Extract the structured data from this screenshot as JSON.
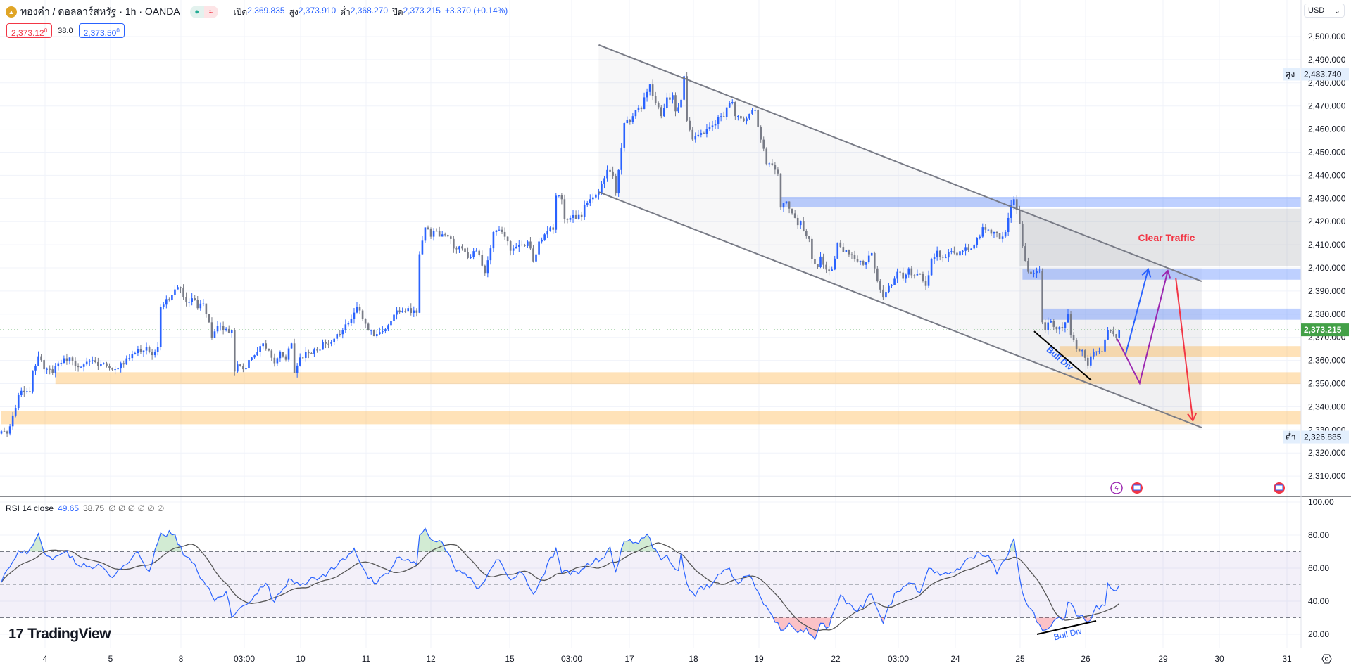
{
  "header": {
    "symbol": "ทองคำ / ดอลลาร์สหรัฐ · 1h · OANDA",
    "open_label": "เปิด",
    "open": "2,369.835",
    "high_label": "สูง",
    "high": "2,373.910",
    "low_label": "ต่ำ",
    "low": "2,368.270",
    "close_label": "ปิด",
    "close": "2,373.215",
    "change": "+3.370 (+0.14%)",
    "bid": "2,373.12",
    "bid_sup": "0",
    "spread": "38.0",
    "ask": "2,373.50",
    "ask_sup": "0",
    "currency": "USD"
  },
  "rsi_header": {
    "label": "RSI 14 close",
    "rsi": "49.65",
    "ma": "38.75",
    "extras": "∅ ∅ ∅ ∅ ∅ ∅"
  },
  "logo": "TradingView",
  "colors": {
    "up": "#2962ff",
    "down": "#787b86",
    "last_price": "#43a047",
    "rsi": "#2962ff",
    "rsi_ma": "#555555",
    "clear_traffic": "#f23645"
  },
  "chart_data": {
    "type": "candlestick",
    "price_axis": {
      "ticks": [
        "2,500.000",
        "2,490.000",
        "2,480.000",
        "2,470.000",
        "2,460.000",
        "2,450.000",
        "2,440.000",
        "2,430.000",
        "2,420.000",
        "2,410.000",
        "2,400.000",
        "2,390.000",
        "2,380.000",
        "2,370.000",
        "2,360.000",
        "2,350.000",
        "2,340.000",
        "2,330.000",
        "2,320.000",
        "2,310.000"
      ],
      "range": [
        2302,
        2511
      ]
    },
    "time_axis": {
      "ticks": [
        "4",
        "5",
        "8",
        "03:00",
        "10",
        "11",
        "12",
        "15",
        "03:00",
        "17",
        "18",
        "19",
        "22",
        "03:00",
        "24",
        "25",
        "26",
        "29",
        "30",
        "31"
      ]
    },
    "last_price": "2,373.215",
    "visible_high": {
      "label": "สูง",
      "value": "2,483.740"
    },
    "visible_low": {
      "label": "ต่ำ",
      "value": "2,326.885"
    },
    "close_path": [
      [
        0,
        2329.4
      ],
      [
        2,
        2328.4
      ],
      [
        5,
        2339.5
      ],
      [
        6,
        2345
      ],
      [
        10,
        2346.6
      ],
      [
        11,
        2355.7
      ],
      [
        13,
        2361.8
      ],
      [
        15,
        2356.2
      ],
      [
        18,
        2354.7
      ],
      [
        20,
        2358.8
      ],
      [
        24,
        2361.3
      ],
      [
        26,
        2357.7
      ],
      [
        29,
        2358.3
      ],
      [
        33,
        2359.3
      ],
      [
        37,
        2357.7
      ],
      [
        40,
        2356.2
      ],
      [
        43,
        2358.3
      ],
      [
        46,
        2362.8
      ],
      [
        51,
        2365.9
      ],
      [
        53,
        2362.3
      ],
      [
        55,
        2365.9
      ],
      [
        56,
        2383.1
      ],
      [
        59,
        2386.1
      ],
      [
        61,
        2390.7
      ],
      [
        63,
        2391.2
      ],
      [
        65,
        2385.1
      ],
      [
        68,
        2386.1
      ],
      [
        69,
        2382.6
      ],
      [
        71,
        2384.6
      ],
      [
        73,
        2376.5
      ],
      [
        74,
        2369.9
      ],
      [
        76,
        2375
      ],
      [
        78,
        2373
      ],
      [
        81,
        2373
      ],
      [
        82,
        2355.2
      ],
      [
        83,
        2358.3
      ],
      [
        85,
        2356.2
      ],
      [
        88,
        2361.3
      ],
      [
        90,
        2363.8
      ],
      [
        92,
        2367.4
      ],
      [
        94,
        2364.3
      ],
      [
        96,
        2358.8
      ],
      [
        98,
        2363.8
      ],
      [
        100,
        2360.3
      ],
      [
        102,
        2367.4
      ],
      [
        103,
        2354.7
      ],
      [
        105,
        2361.3
      ],
      [
        107,
        2363.8
      ],
      [
        111,
        2364.3
      ],
      [
        113,
        2367.9
      ],
      [
        116,
        2367.9
      ],
      [
        118,
        2371.4
      ],
      [
        120,
        2373
      ],
      [
        123,
        2378
      ],
      [
        125,
        2383.1
      ],
      [
        127,
        2378
      ],
      [
        129,
        2373
      ],
      [
        132,
        2371.4
      ],
      [
        135,
        2373.5
      ],
      [
        137,
        2377
      ],
      [
        139,
        2381.6
      ],
      [
        142,
        2381.1
      ],
      [
        145,
        2381.6
      ],
      [
        146,
        2380.6
      ],
      [
        147,
        2405.9
      ],
      [
        149,
        2417.5
      ],
      [
        151,
        2413.5
      ],
      [
        152,
        2416
      ],
      [
        155,
        2414.5
      ],
      [
        158,
        2412.5
      ],
      [
        159,
        2408.4
      ],
      [
        162,
        2408.4
      ],
      [
        164,
        2404.3
      ],
      [
        167,
        2407.4
      ],
      [
        170,
        2397.8
      ],
      [
        171,
        2403.3
      ],
      [
        173,
        2415.5
      ],
      [
        175,
        2416.5
      ],
      [
        177,
        2413.5
      ],
      [
        179,
        2407.4
      ],
      [
        180,
        2408.4
      ],
      [
        183,
        2410
      ],
      [
        185,
        2411.4
      ],
      [
        187,
        2402.8
      ],
      [
        189,
        2411.4
      ],
      [
        191,
        2414.5
      ],
      [
        193,
        2417.5
      ],
      [
        194,
        2416.5
      ],
      [
        195,
        2431.2
      ],
      [
        197,
        2429.7
      ],
      [
        198,
        2421.1
      ],
      [
        200,
        2421.6
      ],
      [
        204,
        2422.1
      ],
      [
        205,
        2427.1
      ],
      [
        207,
        2429.7
      ],
      [
        209,
        2431.7
      ],
      [
        211,
        2436.3
      ],
      [
        213,
        2442.3
      ],
      [
        215,
        2439.8
      ],
      [
        216,
        2432.2
      ],
      [
        217,
        2442.3
      ],
      [
        218,
        2452
      ],
      [
        219,
        2462.6
      ],
      [
        221,
        2463.1
      ],
      [
        222,
        2465.6
      ],
      [
        223,
        2468.2
      ],
      [
        225,
        2468.7
      ],
      [
        228,
        2479.3
      ],
      [
        229,
        2474.3
      ],
      [
        230,
        2471.2
      ],
      [
        232,
        2465.6
      ],
      [
        234,
        2473.7
      ],
      [
        236,
        2474.7
      ],
      [
        237,
        2467.7
      ],
      [
        239,
        2472.7
      ],
      [
        240,
        2482.9
      ],
      [
        241,
        2463.6
      ],
      [
        243,
        2455.5
      ],
      [
        245,
        2457.5
      ],
      [
        247,
        2458
      ],
      [
        249,
        2461.1
      ],
      [
        251,
        2462.1
      ],
      [
        252,
        2465.1
      ],
      [
        254,
        2465.1
      ],
      [
        256,
        2471.2
      ],
      [
        257,
        2471.7
      ],
      [
        258,
        2465.6
      ],
      [
        260,
        2464.6
      ],
      [
        262,
        2464.6
      ],
      [
        264,
        2468.2
      ],
      [
        265,
        2468.2
      ],
      [
        266,
        2461.1
      ],
      [
        268,
        2451.5
      ],
      [
        269,
        2444.9
      ],
      [
        271,
        2444.4
      ],
      [
        273,
        2440.8
      ],
      [
        274,
        2426.1
      ],
      [
        275,
        2428.2
      ],
      [
        276,
        2428.7
      ],
      [
        278,
        2423.6
      ],
      [
        280,
        2418.5
      ],
      [
        281,
        2420.1
      ],
      [
        282,
        2416
      ],
      [
        284,
        2412.5
      ],
      [
        285,
        2403.8
      ],
      [
        287,
        2400.3
      ],
      [
        288,
        2404.9
      ],
      [
        290,
        2399.3
      ],
      [
        292,
        2399.3
      ],
      [
        294,
        2411
      ],
      [
        296,
        2406.9
      ],
      [
        298,
        2405.9
      ],
      [
        301,
        2402.8
      ],
      [
        303,
        2401.3
      ],
      [
        304,
        2402.4
      ],
      [
        306,
        2406.4
      ],
      [
        308,
        2394.2
      ],
      [
        310,
        2387.2
      ],
      [
        312,
        2392.2
      ],
      [
        314,
        2395.3
      ],
      [
        315,
        2398.3
      ],
      [
        317,
        2395.3
      ],
      [
        319,
        2399.8
      ],
      [
        321,
        2396.8
      ],
      [
        323,
        2397.3
      ],
      [
        325,
        2392.2
      ],
      [
        327,
        2403.9
      ],
      [
        329,
        2407.4
      ],
      [
        331,
        2404.4
      ],
      [
        333,
        2406.9
      ],
      [
        336,
        2405.4
      ],
      [
        339,
        2409
      ],
      [
        341,
        2408.4
      ],
      [
        344,
        2413.5
      ],
      [
        345,
        2417.6
      ],
      [
        347,
        2416.5
      ],
      [
        349,
        2415.5
      ],
      [
        351,
        2412.5
      ],
      [
        353,
        2415.5
      ],
      [
        354,
        2421.6
      ],
      [
        356,
        2429.7
      ],
      [
        357,
        2425.1
      ],
      [
        358,
        2419.1
      ],
      [
        359,
        2409.4
      ],
      [
        361,
        2398.3
      ],
      [
        363,
        2397.8
      ],
      [
        365,
        2398.8
      ],
      [
        366,
        2376.5
      ],
      [
        367,
        2373
      ],
      [
        369,
        2377
      ],
      [
        371,
        2373.5
      ],
      [
        373,
        2374
      ],
      [
        375,
        2380.1
      ],
      [
        376,
        2371
      ],
      [
        378,
        2364.9
      ],
      [
        380,
        2364.4
      ],
      [
        382,
        2357.8
      ],
      [
        383,
        2361.8
      ],
      [
        385,
        2363.9
      ],
      [
        387,
        2363.9
      ],
      [
        389,
        2373
      ],
      [
        391,
        2371.4
      ],
      [
        392,
        2369.9
      ],
      [
        393,
        2373.215
      ]
    ],
    "zones": [
      {
        "kind": "supply",
        "from_bar": 274,
        "top": 2430.7,
        "bottom": 2426.2
      },
      {
        "kind": "clear-traffic",
        "from_bar": 358,
        "top": 2425.6,
        "bottom": 2400.6,
        "label": "Clear Traffic"
      },
      {
        "kind": "supply",
        "from_bar": 359,
        "top": 2399.7,
        "bottom": 2394.9
      },
      {
        "kind": "supply",
        "from_bar": 366,
        "top": 2382.4,
        "bottom": 2377.6
      },
      {
        "kind": "demand",
        "from_bar": 372,
        "top": 2366.2,
        "bottom": 2361.5
      },
      {
        "kind": "demand",
        "from_bar": 19,
        "top": 2354.9,
        "bottom": 2349.8
      },
      {
        "kind": "demand",
        "from_bar": 0,
        "top": 2338.0,
        "bottom": 2332.4
      }
    ],
    "channel": {
      "upper": [
        [
          210,
          2496.4
        ],
        [
          422,
          2394.2
        ]
      ],
      "lower": [
        [
          210,
          2432.8
        ],
        [
          422,
          2331.0
        ]
      ]
    },
    "arrows": [
      {
        "color": "#2962ff",
        "points": [
          [
            395.3,
            2362.9
          ],
          [
            403.2,
            2399.4
          ]
        ]
      },
      {
        "color": "#9c27b0",
        "points": [
          [
            392.3,
            2369.3
          ],
          [
            400.2,
            2350.2
          ],
          [
            410.1,
            2398.8
          ]
        ]
      },
      {
        "color": "#f23645",
        "points": [
          [
            412.9,
            2395.7
          ],
          [
            418.9,
            2334.0
          ]
        ]
      }
    ],
    "price_divergence": {
      "label": "Bull Div",
      "line": [
        [
          363.1,
          2372.6
        ],
        [
          383.2,
          2351.4
        ]
      ],
      "text_at": [
        371.5,
        2359.9
      ]
    },
    "rsi": {
      "length": 14,
      "ticks": [
        "100.00",
        "80.00",
        "60.00",
        "40.00",
        "20.00"
      ],
      "bands": [
        70,
        50,
        30
      ],
      "path": [
        [
          0,
          51.5
        ],
        [
          3,
          60.7
        ],
        [
          6,
          70.6
        ],
        [
          9,
          68.5
        ],
        [
          11,
          73.5
        ],
        [
          13,
          80.9
        ],
        [
          15,
          69.2
        ],
        [
          18,
          65
        ],
        [
          23,
          70.6
        ],
        [
          26,
          62.8
        ],
        [
          30,
          60.7
        ],
        [
          35,
          61.4
        ],
        [
          39,
          54.3
        ],
        [
          44,
          62.1
        ],
        [
          48,
          69.9
        ],
        [
          52,
          57.9
        ],
        [
          56,
          81.3
        ],
        [
          61,
          80.6
        ],
        [
          64,
          67.8
        ],
        [
          67,
          63.5
        ],
        [
          72,
          49.4
        ],
        [
          75,
          40.1
        ],
        [
          79,
          45.8
        ],
        [
          81,
          30.2
        ],
        [
          85,
          37.3
        ],
        [
          89,
          43.7
        ],
        [
          93,
          50.8
        ],
        [
          96,
          39.4
        ],
        [
          101,
          53.6
        ],
        [
          106,
          50.8
        ],
        [
          112,
          54.3
        ],
        [
          118,
          61.4
        ],
        [
          124,
          72
        ],
        [
          129,
          53.6
        ],
        [
          132,
          50.8
        ],
        [
          136,
          56.5
        ],
        [
          139,
          66.4
        ],
        [
          146,
          62.1
        ],
        [
          147,
          79.9
        ],
        [
          149,
          84.1
        ],
        [
          152,
          76.4
        ],
        [
          155,
          75.6
        ],
        [
          159,
          61.4
        ],
        [
          164,
          54.3
        ],
        [
          168,
          48
        ],
        [
          172,
          59.3
        ],
        [
          175,
          65
        ],
        [
          179,
          52.9
        ],
        [
          183,
          57.1
        ],
        [
          187,
          44.3
        ],
        [
          190,
          54.3
        ],
        [
          195,
          72
        ],
        [
          197,
          57.1
        ],
        [
          203,
          56.5
        ],
        [
          206,
          62.8
        ],
        [
          211,
          65.6
        ],
        [
          214,
          72.8
        ],
        [
          216,
          57.9
        ],
        [
          219,
          76.4
        ],
        [
          223,
          75.6
        ],
        [
          227,
          80.6
        ],
        [
          229,
          72
        ],
        [
          232,
          65
        ],
        [
          234,
          67.8
        ],
        [
          238,
          58.6
        ],
        [
          239,
          69.2
        ],
        [
          241,
          50.8
        ],
        [
          244,
          43
        ],
        [
          245,
          47.2
        ],
        [
          250,
          50.8
        ],
        [
          253,
          56.5
        ],
        [
          256,
          60
        ],
        [
          259,
          50.8
        ],
        [
          263,
          55.7
        ],
        [
          266,
          45.8
        ],
        [
          270,
          33.8
        ],
        [
          274,
          22.4
        ],
        [
          277,
          26.7
        ],
        [
          280,
          21
        ],
        [
          283,
          23.8
        ],
        [
          286,
          16.7
        ],
        [
          288,
          26.7
        ],
        [
          291,
          24.6
        ],
        [
          295,
          43.7
        ],
        [
          298,
          38.8
        ],
        [
          301,
          33.8
        ],
        [
          306,
          44.3
        ],
        [
          309,
          30.9
        ],
        [
          310,
          26.7
        ],
        [
          312,
          37.3
        ],
        [
          315,
          45.8
        ],
        [
          320,
          50.8
        ],
        [
          323,
          45.2
        ],
        [
          326,
          60
        ],
        [
          330,
          55.7
        ],
        [
          333,
          56.5
        ],
        [
          338,
          62.1
        ],
        [
          344,
          69.2
        ],
        [
          347,
          67.8
        ],
        [
          350,
          56.5
        ],
        [
          354,
          68.5
        ],
        [
          356,
          77.8
        ],
        [
          359,
          45.2
        ],
        [
          362,
          35.3
        ],
        [
          366,
          22.4
        ],
        [
          370,
          28.1
        ],
        [
          374,
          30.2
        ],
        [
          375,
          39.4
        ],
        [
          379,
          30.9
        ],
        [
          383,
          28.7
        ],
        [
          385,
          37.3
        ],
        [
          388,
          37.3
        ],
        [
          389,
          50.8
        ],
        [
          391,
          46.6
        ],
        [
          393,
          49.65
        ]
      ],
      "divergence": {
        "label": "Bull Div",
        "line": [
          [
            364.1,
            20
          ],
          [
            384.9,
            28.1
          ]
        ],
        "text_at": [
          375.2,
          18.5
        ]
      }
    }
  }
}
